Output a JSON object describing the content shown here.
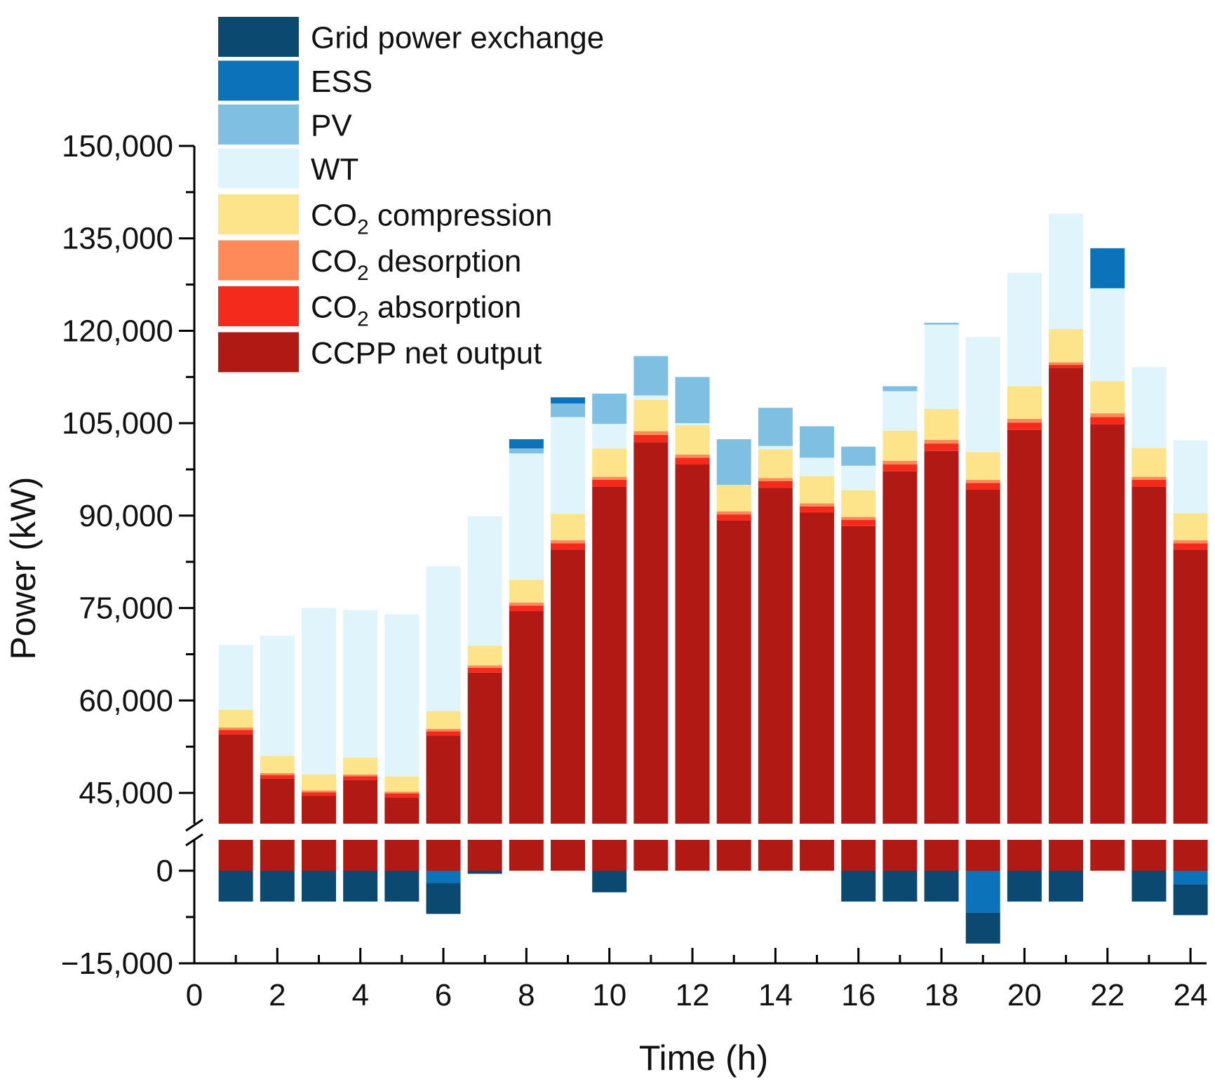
{
  "chart_data": {
    "type": "bar",
    "stacked": true,
    "title": "",
    "xlabel": "Time (h)",
    "ylabel": "Power (kW)",
    "xlim": [
      0,
      24.5
    ],
    "x_ticks": [
      0,
      2,
      4,
      6,
      8,
      10,
      12,
      14,
      16,
      18,
      20,
      22,
      24
    ],
    "x_tick_labels": [
      "0",
      "2",
      "4",
      "6",
      "8",
      "10",
      "12",
      "14",
      "16",
      "18",
      "20",
      "22",
      "24"
    ],
    "y_axis_break": {
      "lower_segment": [
        -15000,
        5000
      ],
      "upper_segment": [
        40000,
        150000
      ]
    },
    "y_ticks_upper": [
      45000,
      60000,
      75000,
      90000,
      105000,
      120000,
      135000,
      150000
    ],
    "y_tick_labels_upper": [
      "45,000",
      "60,000",
      "75,000",
      "90,000",
      "105,000",
      "120,000",
      "135,000",
      "150,000"
    ],
    "y_ticks_lower": [
      0,
      -15000
    ],
    "y_tick_labels_lower": [
      "0",
      "−15,000"
    ],
    "legend_position": "top-left",
    "x": [
      1,
      2,
      3,
      4,
      5,
      6,
      7,
      8,
      9,
      10,
      11,
      12,
      13,
      14,
      15,
      16,
      17,
      18,
      19,
      20,
      21,
      22,
      23,
      24
    ],
    "series": [
      {
        "name": "CCPP net output",
        "color": "#b11a14",
        "values": [
          54500,
          47300,
          44500,
          47100,
          44300,
          54300,
          64500,
          74500,
          84500,
          94700,
          101900,
          98300,
          89200,
          94500,
          90500,
          88300,
          97200,
          100500,
          94200,
          103900,
          114000,
          104800,
          94700,
          84500
        ]
      },
      {
        "name": "CO2 absorption",
        "color": "#f42a1c",
        "values": [
          700,
          600,
          600,
          600,
          600,
          700,
          800,
          900,
          1000,
          1100,
          1200,
          1100,
          1000,
          1100,
          1000,
          1000,
          1100,
          1200,
          1100,
          1200,
          500,
          1200,
          1100,
          1000
        ]
      },
      {
        "name": "CO2 desorption",
        "color": "#ff8a59",
        "values": [
          400,
          300,
          300,
          300,
          300,
          400,
          400,
          500,
          500,
          500,
          600,
          500,
          500,
          500,
          500,
          500,
          600,
          600,
          500,
          600,
          400,
          600,
          500,
          500
        ]
      },
      {
        "name": "CO2 compression",
        "color": "#fde48a",
        "values": [
          2900,
          2800,
          2600,
          2700,
          2500,
          2900,
          3200,
          3700,
          4300,
          4600,
          5100,
          4800,
          4300,
          4700,
          4400,
          4300,
          4900,
          5000,
          4500,
          5300,
          5400,
          5200,
          4700,
          4400
        ]
      },
      {
        "name": "WT",
        "color": "#dff4fb",
        "values": [
          10500,
          19500,
          27000,
          24000,
          26300,
          23500,
          21000,
          20500,
          15700,
          4000,
          700,
          300,
          0,
          500,
          3000,
          4000,
          6400,
          13700,
          18700,
          18400,
          18700,
          15100,
          13100,
          11800
        ]
      },
      {
        "name": "PV",
        "color": "#7fbfe1",
        "values": [
          0,
          0,
          0,
          0,
          0,
          0,
          0,
          800,
          2200,
          4900,
          6400,
          7500,
          7400,
          6200,
          5100,
          3100,
          800,
          300,
          0,
          0,
          0,
          0,
          0,
          0
        ]
      },
      {
        "name": "ESS",
        "color": "#0c72b9",
        "values": [
          0,
          0,
          0,
          0,
          0,
          -2000,
          0,
          1500,
          1000,
          0,
          0,
          0,
          0,
          0,
          0,
          0,
          0,
          0,
          -6800,
          0,
          0,
          6500,
          0,
          -2200
        ]
      },
      {
        "name": "Grid power exchange",
        "color": "#0b4970",
        "values": [
          -5000,
          -5000,
          -5000,
          -5000,
          -5000,
          -5000,
          -500,
          0,
          0,
          -3500,
          0,
          0,
          0,
          0,
          0,
          -5000,
          -5000,
          -5000,
          -5000,
          -5000,
          -5000,
          0,
          -5000,
          -5000
        ]
      }
    ],
    "legend_order": [
      "Grid power exchange",
      "ESS",
      "PV",
      "WT",
      "CO2 compression",
      "CO2 desorption",
      "CO2 absorption",
      "CCPP net output"
    ],
    "legend_labels": [
      {
        "main": "Grid power exchange",
        "sub": "",
        "rest": ""
      },
      {
        "main": "ESS",
        "sub": "",
        "rest": ""
      },
      {
        "main": "PV",
        "sub": "",
        "rest": ""
      },
      {
        "main": "WT",
        "sub": "",
        "rest": ""
      },
      {
        "main": "CO",
        "sub": "2",
        "rest": " compression"
      },
      {
        "main": "CO",
        "sub": "2",
        "rest": " desorption"
      },
      {
        "main": "CO",
        "sub": "2",
        "rest": " absorption"
      },
      {
        "main": "CCPP net output",
        "sub": "",
        "rest": ""
      }
    ]
  }
}
